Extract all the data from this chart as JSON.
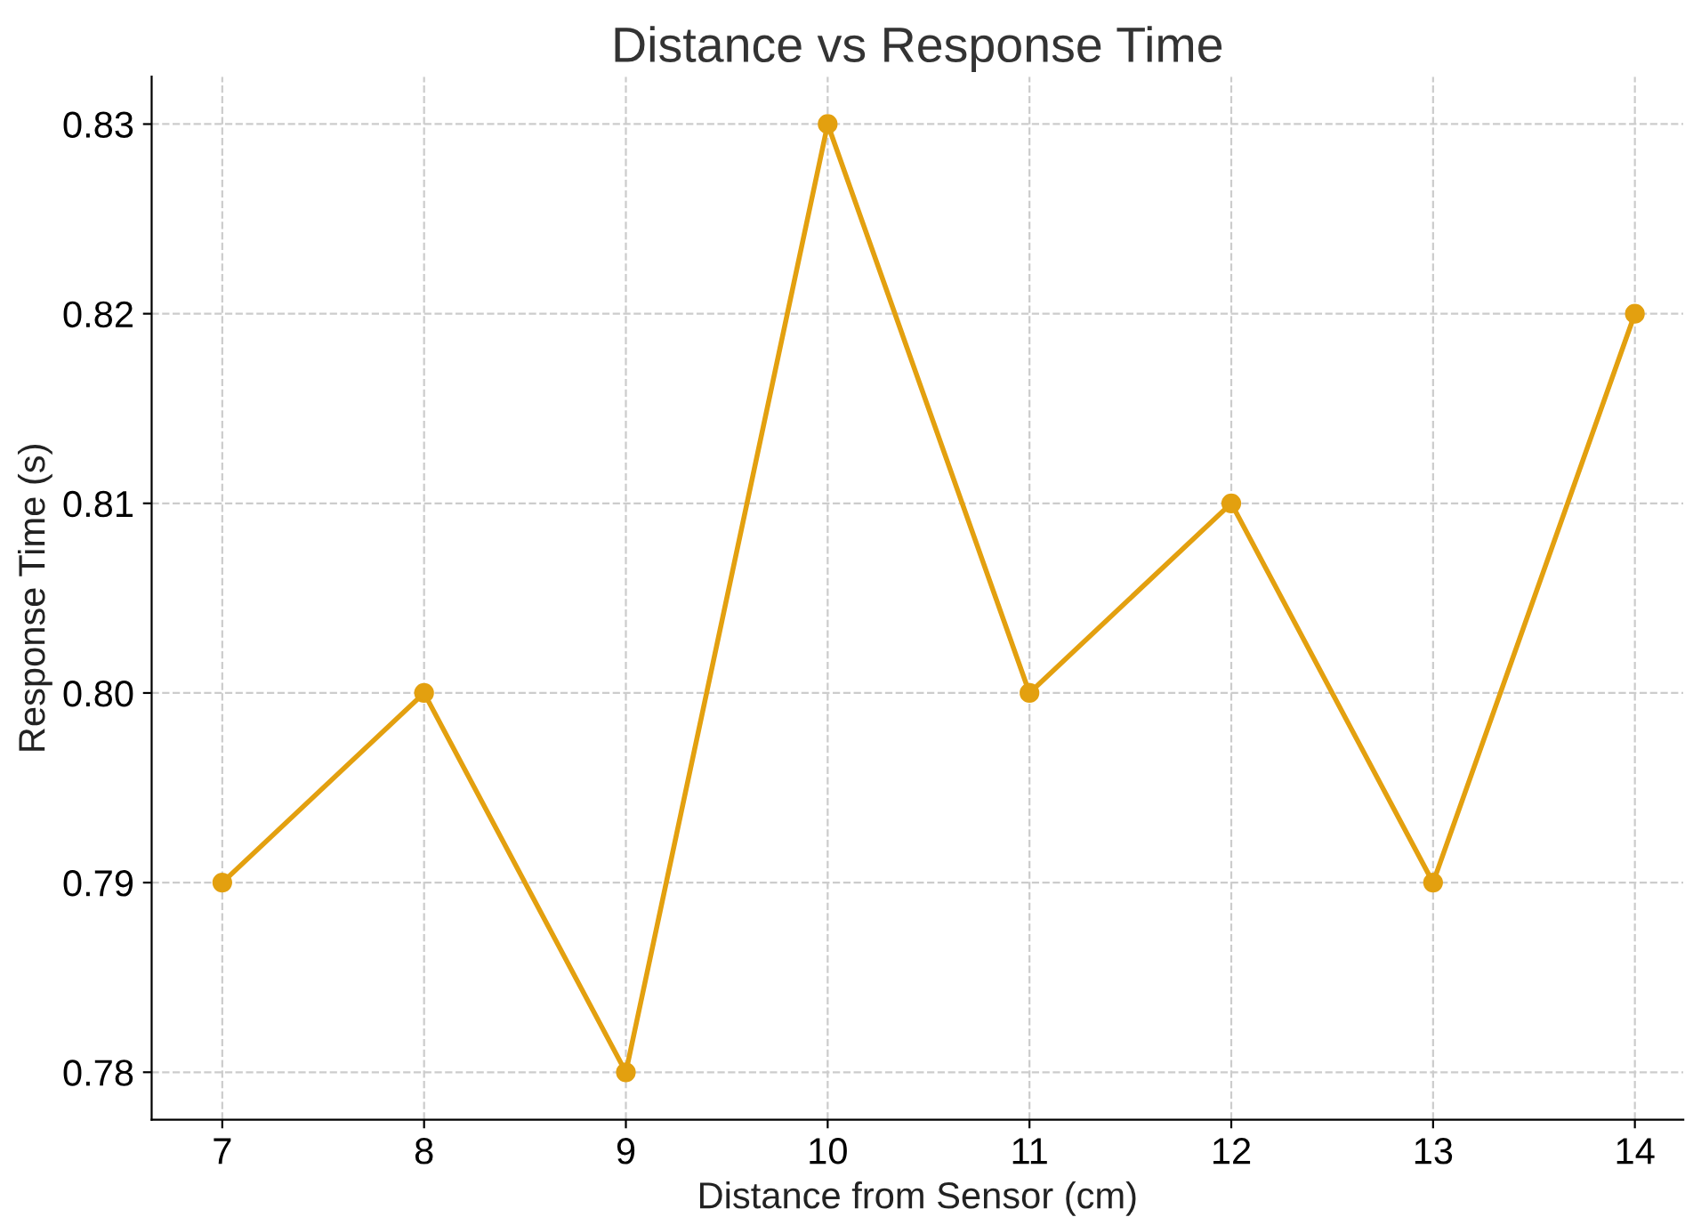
{
  "chart_data": {
    "type": "line",
    "title": "Distance vs Response Time",
    "xlabel": "Distance from Sensor (cm)",
    "ylabel": "Response Time (s)",
    "x": [
      7,
      8,
      9,
      10,
      11,
      12,
      13,
      14
    ],
    "series": [
      {
        "color": "#e3a00f",
        "values": [
          0.79,
          0.8,
          0.78,
          0.83,
          0.8,
          0.81,
          0.79,
          0.82
        ]
      }
    ],
    "xlim": [
      6.65,
      14.24
    ],
    "ylim": [
      0.7775,
      0.8325
    ],
    "xticks": [
      7,
      8,
      9,
      10,
      11,
      12,
      13,
      14
    ],
    "yticks": [
      {
        "value": 0.78,
        "label": "0.78"
      },
      {
        "value": 0.79,
        "label": "0.79"
      },
      {
        "value": 0.8,
        "label": "0.80"
      },
      {
        "value": 0.81,
        "label": "0.81"
      },
      {
        "value": 0.82,
        "label": "0.82"
      },
      {
        "value": 0.83,
        "label": "0.83"
      }
    ],
    "grid": true,
    "marker": "circle",
    "line_style": "solid",
    "legend": false
  }
}
